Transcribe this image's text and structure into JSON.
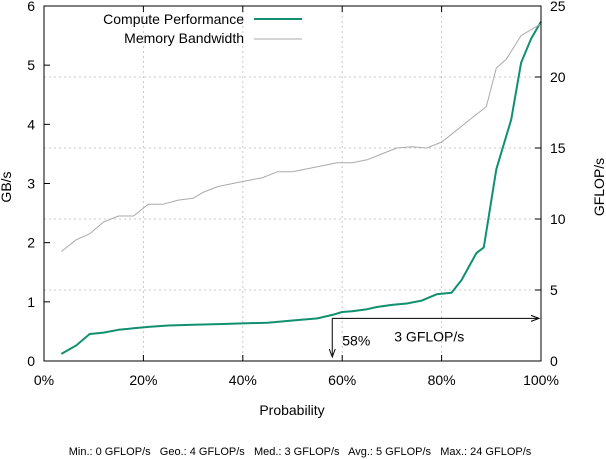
{
  "chart_data": {
    "type": "line",
    "xlabel": "Probability",
    "ylabel_left": "GB/s",
    "ylabel_right": "GFLOP/s",
    "xlim": [
      0,
      100
    ],
    "ylim_left": [
      0,
      6
    ],
    "ylim_right": [
      0,
      25
    ],
    "x_ticks": [
      0,
      20,
      40,
      60,
      80,
      100
    ],
    "x_tick_labels": [
      "0%",
      "20%",
      "40%",
      "60%",
      "80%",
      "100%"
    ],
    "y_left_ticks": [
      0,
      1,
      2,
      3,
      4,
      5,
      6
    ],
    "y_left_tick_labels": [
      "0",
      "1",
      "2",
      "3",
      "4",
      "5",
      "6"
    ],
    "y_right_ticks": [
      0,
      5,
      10,
      15,
      20,
      25
    ],
    "y_right_tick_labels": [
      "0",
      "5",
      "10",
      "15",
      "20",
      "25"
    ],
    "grid": "dashed, right-axis major ticks only",
    "legend_position": "top-left",
    "series": [
      {
        "name": "Compute Performance",
        "axis": "right",
        "color": "#109070",
        "points": [
          [
            3.5,
            0.5
          ],
          [
            6.5,
            1.1
          ],
          [
            9.2,
            1.9
          ],
          [
            12,
            2.0
          ],
          [
            15,
            2.2
          ],
          [
            18,
            2.3
          ],
          [
            21,
            2.4
          ],
          [
            25,
            2.5
          ],
          [
            30,
            2.55
          ],
          [
            35,
            2.6
          ],
          [
            40,
            2.65
          ],
          [
            45,
            2.7
          ],
          [
            50,
            2.85
          ],
          [
            55,
            3.0
          ],
          [
            58,
            3.25
          ],
          [
            60,
            3.45
          ],
          [
            62,
            3.5
          ],
          [
            65,
            3.65
          ],
          [
            67,
            3.8
          ],
          [
            70,
            3.95
          ],
          [
            73,
            4.05
          ],
          [
            76,
            4.25
          ],
          [
            79,
            4.7
          ],
          [
            82,
            4.8
          ],
          [
            84,
            5.7
          ],
          [
            87,
            7.6
          ],
          [
            88.5,
            8.0
          ],
          [
            91,
            13.5
          ],
          [
            94,
            17.0
          ],
          [
            96,
            21.0
          ],
          [
            98,
            22.7
          ],
          [
            100,
            23.9
          ]
        ]
      },
      {
        "name": "Memory Bandwidth",
        "axis": "left",
        "color": "#aaaaaa",
        "points": [
          [
            3.5,
            1.85
          ],
          [
            6.5,
            2.05
          ],
          [
            9.2,
            2.15
          ],
          [
            12,
            2.35
          ],
          [
            15,
            2.45
          ],
          [
            18,
            2.45
          ],
          [
            21,
            2.65
          ],
          [
            24,
            2.65
          ],
          [
            27,
            2.72
          ],
          [
            30,
            2.75
          ],
          [
            32,
            2.85
          ],
          [
            35,
            2.95
          ],
          [
            38,
            3.0
          ],
          [
            41,
            3.05
          ],
          [
            44,
            3.1
          ],
          [
            47,
            3.2
          ],
          [
            50,
            3.2
          ],
          [
            53,
            3.25
          ],
          [
            56,
            3.3
          ],
          [
            59,
            3.35
          ],
          [
            62,
            3.35
          ],
          [
            65,
            3.4
          ],
          [
            68,
            3.5
          ],
          [
            71,
            3.6
          ],
          [
            74,
            3.62
          ],
          [
            77,
            3.6
          ],
          [
            80,
            3.7
          ],
          [
            83,
            3.9
          ],
          [
            86,
            4.1
          ],
          [
            89,
            4.3
          ],
          [
            91,
            4.95
          ],
          [
            93,
            5.1
          ],
          [
            96,
            5.5
          ],
          [
            98,
            5.6
          ],
          [
            100,
            5.7
          ]
        ]
      }
    ],
    "annotations": [
      {
        "text": "58%",
        "x": 58,
        "y_right": 3
      },
      {
        "text": "3 GFLOP/s",
        "x": 58,
        "y_right": 3
      }
    ],
    "stats_text": "Min.: 0 GFLOP/s   Geo.: 4 GFLOP/s   Med.: 3 GFLOP/s   Avg.: 5 GFLOP/s   Max.: 24 GFLOP/s"
  }
}
